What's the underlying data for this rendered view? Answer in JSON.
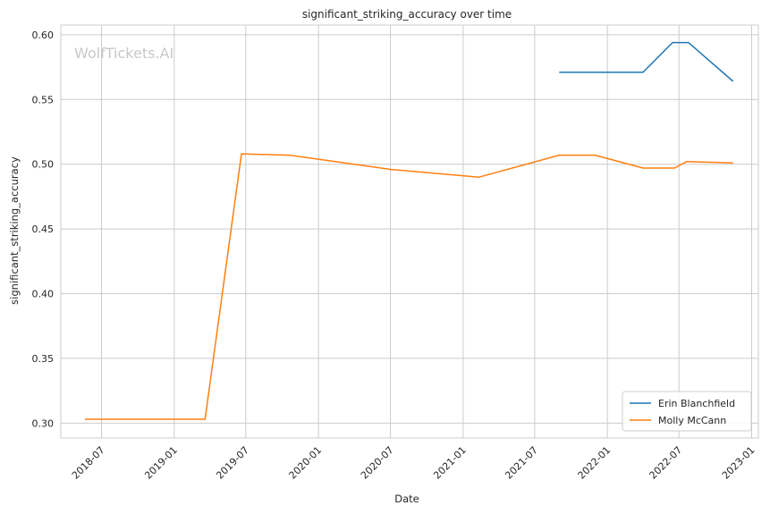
{
  "chart_data": {
    "type": "line",
    "title": "significant_striking_accuracy over time",
    "xlabel": "Date",
    "ylabel": "significant_striking_accuracy",
    "watermark": "WolfTickets.AI",
    "x_ticks": [
      "2018-07",
      "2019-01",
      "2019-07",
      "2020-01",
      "2020-07",
      "2021-01",
      "2021-07",
      "2022-01",
      "2022-07",
      "2023-01"
    ],
    "y_ticks": [
      "0.30",
      "0.35",
      "0.40",
      "0.45",
      "0.50",
      "0.55",
      "0.60"
    ],
    "xlim": [
      "2018-03-20",
      "2023-01-18"
    ],
    "ylim": [
      0.2885,
      0.6075
    ],
    "grid": true,
    "legend_position": "lower-right",
    "series": [
      {
        "name": "Erin Blanchfield",
        "color": "#1f77b4",
        "x": [
          "2021-09-01",
          "2022-04-01",
          "2022-06-15",
          "2022-07-25",
          "2022-11-15"
        ],
        "y": [
          0.571,
          0.571,
          0.594,
          0.594,
          0.564
        ]
      },
      {
        "name": "Molly McCann",
        "color": "#ff7f0e",
        "x": [
          "2018-05-20",
          "2019-03-20",
          "2019-06-20",
          "2019-10-20",
          "2020-07-01",
          "2021-02-10",
          "2021-09-01",
          "2021-12-01",
          "2022-04-01",
          "2022-06-20",
          "2022-07-20",
          "2022-11-15"
        ],
        "y": [
          0.303,
          0.303,
          0.508,
          0.507,
          0.496,
          0.49,
          0.507,
          0.507,
          0.497,
          0.497,
          0.502,
          0.501
        ]
      }
    ]
  }
}
